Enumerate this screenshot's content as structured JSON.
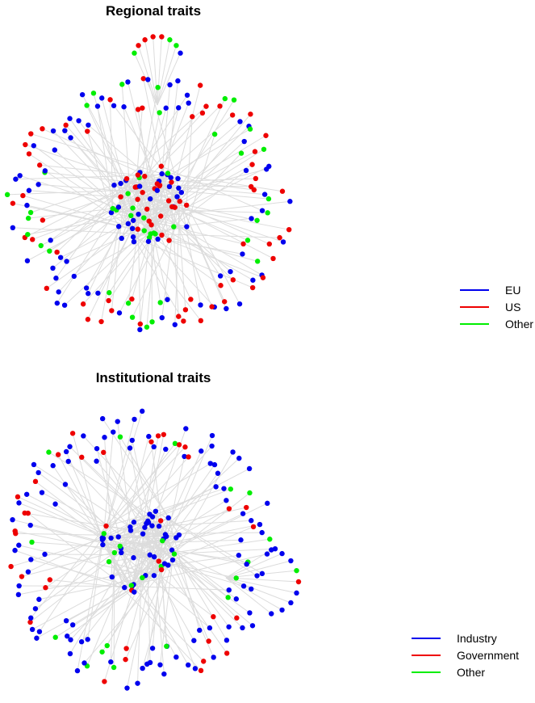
{
  "panels": [
    {
      "title": "Regional traits",
      "legend": [
        {
          "label": "EU",
          "color": "#0000ee"
        },
        {
          "label": "US",
          "color": "#ee0000"
        },
        {
          "label": "Other",
          "color": "#00ee00"
        }
      ]
    },
    {
      "title": "Institutional traits",
      "legend": [
        {
          "label": "Industry",
          "color": "#0000ee"
        },
        {
          "label": "Government",
          "color": "#ee0000"
        },
        {
          "label": "Other",
          "color": "#00ee00"
        }
      ]
    }
  ],
  "edge_color": "#dcdcdc"
}
